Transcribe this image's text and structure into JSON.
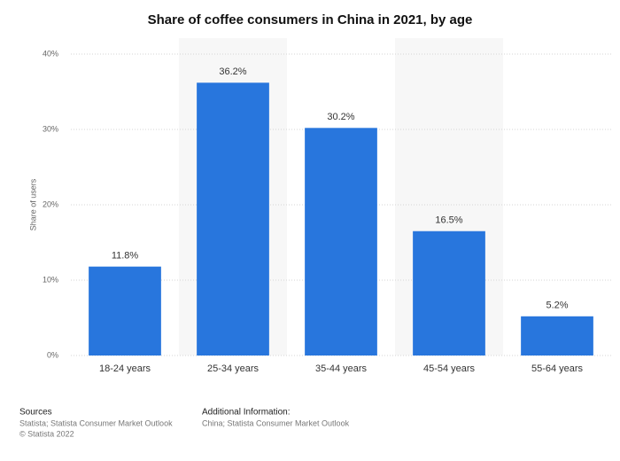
{
  "chart_data": {
    "type": "bar",
    "title": "Share of coffee consumers in China in 2021, by age",
    "y_label": "Share of users",
    "categories": [
      "18-24 years",
      "25-34 years",
      "35-44 years",
      "45-54 years",
      "55-64 years"
    ],
    "values": [
      11.8,
      36.2,
      30.2,
      16.5,
      5.2
    ],
    "value_labels": [
      "11.8%",
      "36.2%",
      "30.2%",
      "16.5%",
      "5.2%"
    ],
    "color": "#2876dd",
    "ylim": [
      0,
      40
    ],
    "yticks": [
      {
        "value": 0,
        "label": "0%"
      },
      {
        "value": 10,
        "label": "10%"
      },
      {
        "value": 20,
        "label": "20%"
      },
      {
        "value": 30,
        "label": "30%"
      },
      {
        "value": 40,
        "label": "40%"
      }
    ],
    "grid": true
  },
  "footer": {
    "sources_title": "Sources",
    "sources": [
      "Statista; Statista Consumer Market Outlook",
      "© Statista 2022"
    ],
    "info_title": "Additional Information:",
    "info": "China; Statista Consumer Market Outlook"
  }
}
